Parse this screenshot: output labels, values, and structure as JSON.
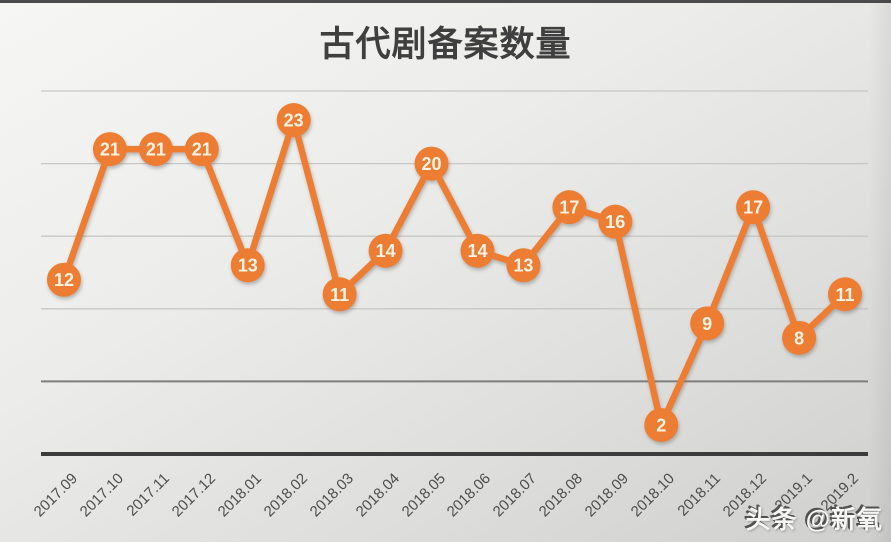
{
  "page": {
    "watermark": "头条 @新氧"
  },
  "chart_data": {
    "type": "line",
    "title": "古代剧备案数量",
    "categories": [
      "2017.09",
      "2017.10",
      "2017.11",
      "2017.12",
      "2018.01",
      "2018.02",
      "2018.03",
      "2018.04",
      "2018.05",
      "2018.06",
      "2018.07",
      "2018.08",
      "2018.09",
      "2018.10",
      "2018.11",
      "2018.12",
      "2019.1",
      "2019.2"
    ],
    "values": [
      12,
      21,
      21,
      21,
      13,
      23,
      11,
      14,
      20,
      14,
      13,
      17,
      16,
      2,
      9,
      17,
      8,
      11
    ],
    "xlabel": "",
    "ylabel": "",
    "ylim": [
      0,
      25
    ],
    "gridline_values": [
      5,
      10,
      15,
      20,
      25
    ],
    "grid": true,
    "legend": "none",
    "data_labels": "on-markers",
    "colors": {
      "series": "#ED7D31",
      "marker_label": "#FCF3E4",
      "title": "#3F3F3F",
      "axis_label": "#4C4C4C",
      "gridline": "#C7C7C5",
      "gridline_dark": "#7E7E7C",
      "axis_line": "#3C3C3C"
    }
  }
}
